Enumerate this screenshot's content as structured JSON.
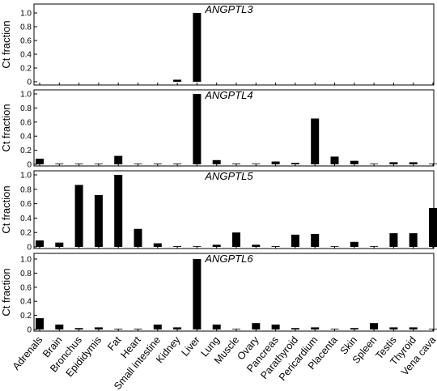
{
  "chart_data": {
    "type": "bar",
    "categories": [
      "Adrenals",
      "Brain",
      "Bronchus",
      "Epididymis",
      "Fat",
      "Heart",
      "Small intestine",
      "Kidney",
      "Liver",
      "Lung",
      "Muscle",
      "Ovary",
      "Pancreas",
      "Parathyroid",
      "Pericardium",
      "Placenta",
      "Skin",
      "Spleen",
      "Testis",
      "Thyroid",
      "Vena cava"
    ],
    "ylabel": "Ct fraction",
    "ylim": [
      0,
      1.0
    ],
    "yticks": [
      "0",
      "0.2",
      "0.4",
      "0.6",
      "0.8",
      "1.0"
    ],
    "panels": [
      {
        "title": "ANGPTL3",
        "values": [
          0,
          0,
          0,
          0,
          0,
          0,
          0,
          0.03,
          1.0,
          0,
          0,
          0,
          0,
          0,
          0,
          0,
          0,
          0,
          0,
          0,
          0
        ]
      },
      {
        "title": "ANGPTL4",
        "values": [
          0.08,
          0.01,
          0.005,
          0.005,
          0.12,
          0.005,
          0.01,
          0.01,
          1.0,
          0.06,
          0.01,
          0.005,
          0.04,
          0.02,
          0.65,
          0.11,
          0.05,
          0.005,
          0.03,
          0.03,
          0.005
        ]
      },
      {
        "title": "ANGPTL5",
        "values": [
          0.09,
          0.06,
          0.86,
          0.72,
          1.0,
          0.25,
          0.05,
          0.01,
          0.005,
          0.03,
          0.2,
          0.03,
          0.01,
          0.17,
          0.18,
          0.005,
          0.07,
          0.005,
          0.19,
          0.19,
          0.54
        ]
      },
      {
        "title": "ANGPTL6",
        "values": [
          0.16,
          0.07,
          0.02,
          0.03,
          0.01,
          0.01,
          0.07,
          0.03,
          1.0,
          0.07,
          0.005,
          0.09,
          0.07,
          0.02,
          0.03,
          0.01,
          0.02,
          0.09,
          0.03,
          0.03,
          0.005
        ]
      }
    ],
    "bar_color": "#000000",
    "grid": false
  }
}
